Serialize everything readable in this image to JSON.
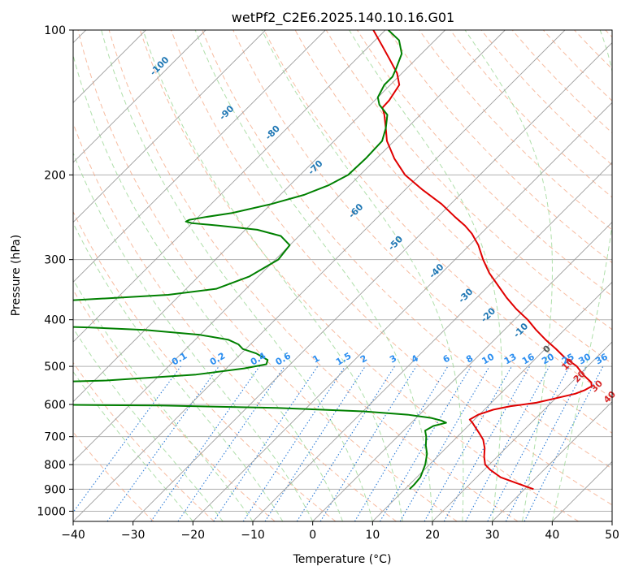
{
  "chart_data": {
    "type": "line",
    "subtype": "skew-t log-p diagram",
    "title": "wetPf2_C2E6.2025.140.10.16.G01",
    "xlabel": "Temperature (°C)",
    "ylabel": "Pressure (hPa)",
    "xlim": [
      -40,
      50
    ],
    "ylim": [
      1050,
      100
    ],
    "y_scale": "log",
    "x_ticks": [
      -40,
      -30,
      -20,
      -10,
      0,
      10,
      20,
      30,
      40,
      50
    ],
    "y_ticks": [
      100,
      200,
      300,
      400,
      500,
      600,
      700,
      800,
      900,
      1000
    ],
    "grid": true,
    "series": [
      {
        "role": "temperature",
        "color": "#e00000",
        "points": [
          [
            900,
            31.5
          ],
          [
            870,
            27
          ],
          [
            850,
            24
          ],
          [
            820,
            21
          ],
          [
            800,
            19.3
          ],
          [
            770,
            17.8
          ],
          [
            740,
            16.5
          ],
          [
            710,
            14.8
          ],
          [
            690,
            13.2
          ],
          [
            670,
            11.5
          ],
          [
            655,
            10.2
          ],
          [
            645,
            9.2
          ],
          [
            630,
            9.8
          ],
          [
            615,
            11.5
          ],
          [
            605,
            13.8
          ],
          [
            595,
            17.5
          ],
          [
            580,
            20.5
          ],
          [
            570,
            22.5
          ],
          [
            560,
            23.5
          ],
          [
            550,
            24
          ],
          [
            540,
            23.3
          ],
          [
            520,
            20.6
          ],
          [
            500,
            18.2
          ],
          [
            480,
            14.8
          ],
          [
            460,
            11.8
          ],
          [
            440,
            8.5
          ],
          [
            420,
            5.3
          ],
          [
            400,
            2.2
          ],
          [
            380,
            -1.5
          ],
          [
            360,
            -5
          ],
          [
            340,
            -8.4
          ],
          [
            320,
            -12
          ],
          [
            300,
            -15.3
          ],
          [
            280,
            -18.5
          ],
          [
            265,
            -21.5
          ],
          [
            255,
            -24
          ],
          [
            245,
            -27
          ],
          [
            230,
            -31.5
          ],
          [
            215,
            -37
          ],
          [
            200,
            -42.5
          ],
          [
            185,
            -47
          ],
          [
            170,
            -51.2
          ],
          [
            160,
            -53.5
          ],
          [
            150,
            -56
          ],
          [
            145,
            -57.5
          ],
          [
            140,
            -57.6
          ],
          [
            130,
            -58.5
          ],
          [
            123,
            -60.8
          ],
          [
            115,
            -64.4
          ],
          [
            108,
            -67.8
          ],
          [
            100,
            -72
          ]
        ]
      },
      {
        "role": "dewpoint",
        "color": "#008000",
        "points": [
          [
            900,
            10.8
          ],
          [
            880,
            10.8
          ],
          [
            850,
            10.6
          ],
          [
            800,
            9.3
          ],
          [
            760,
            7.8
          ],
          [
            730,
            6.2
          ],
          [
            700,
            4.8
          ],
          [
            680,
            3.6
          ],
          [
            665,
            4.2
          ],
          [
            655,
            5.8
          ],
          [
            648,
            4.6
          ],
          [
            640,
            2.5
          ],
          [
            630,
            -2
          ],
          [
            620,
            -10
          ],
          [
            610,
            -25
          ],
          [
            603,
            -45
          ],
          [
            600,
            -70
          ],
          [
            595,
            -80
          ],
          [
            590,
            -85
          ],
          [
            545,
            -82
          ],
          [
            540,
            -70
          ],
          [
            535,
            -58
          ],
          [
            520,
            -44
          ],
          [
            505,
            -37
          ],
          [
            495,
            -34
          ],
          [
            485,
            -34.5
          ],
          [
            470,
            -37.5
          ],
          [
            460,
            -40.5
          ],
          [
            450,
            -42
          ],
          [
            440,
            -44.5
          ],
          [
            430,
            -50
          ],
          [
            420,
            -60
          ],
          [
            415,
            -70
          ],
          [
            413,
            -76
          ],
          [
            405,
            -77
          ],
          [
            395,
            -77.5
          ],
          [
            385,
            -78.5
          ],
          [
            375,
            -79.5
          ],
          [
            370,
            -79.8
          ],
          [
            365,
            -78
          ],
          [
            360,
            -70
          ],
          [
            355,
            -62
          ],
          [
            345,
            -55
          ],
          [
            325,
            -51.5
          ],
          [
            300,
            -49.5
          ],
          [
            280,
            -50
          ],
          [
            268,
            -53
          ],
          [
            260,
            -58
          ],
          [
            255,
            -65
          ],
          [
            252,
            -70
          ],
          [
            250,
            -71.3
          ],
          [
            248,
            -71
          ],
          [
            245,
            -69
          ],
          [
            240,
            -65
          ],
          [
            230,
            -60
          ],
          [
            220,
            -56
          ],
          [
            210,
            -53.5
          ],
          [
            200,
            -52
          ],
          [
            185,
            -51.8
          ],
          [
            170,
            -52
          ],
          [
            160,
            -53.5
          ],
          [
            150,
            -55.5
          ],
          [
            143,
            -58.5
          ],
          [
            138,
            -60
          ],
          [
            130,
            -61
          ],
          [
            125,
            -61
          ],
          [
            120,
            -61.8
          ],
          [
            112,
            -63.3
          ],
          [
            105,
            -66
          ],
          [
            100,
            -69.5
          ]
        ]
      }
    ],
    "dry_adiabat_labels": [
      "-100",
      "-90",
      "-80",
      "-70",
      "-60",
      "-50",
      "-40",
      "-30",
      "-20",
      "-10",
      "0",
      "10",
      "20",
      "30",
      "40"
    ],
    "mixing_ratio_labels": [
      "0.1",
      "0.2",
      "0.4",
      "0.6",
      "1",
      "1.5",
      "2",
      "3",
      "4",
      "6",
      "8",
      "10",
      "13",
      "16",
      "20",
      "25",
      "30",
      "36"
    ]
  }
}
